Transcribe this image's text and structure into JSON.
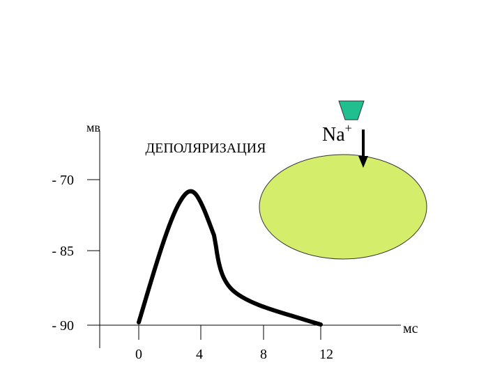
{
  "y_axis_label": "мв",
  "x_axis_label": "мс",
  "title": "ДЕПОЛЯРИЗАЦИЯ",
  "y_ticks": [
    "- 70",
    "- 85",
    "- 90"
  ],
  "x_ticks": [
    "0",
    "4",
    "8",
    "12"
  ],
  "ion": {
    "symbol": "Na",
    "charge": "+"
  }
}
